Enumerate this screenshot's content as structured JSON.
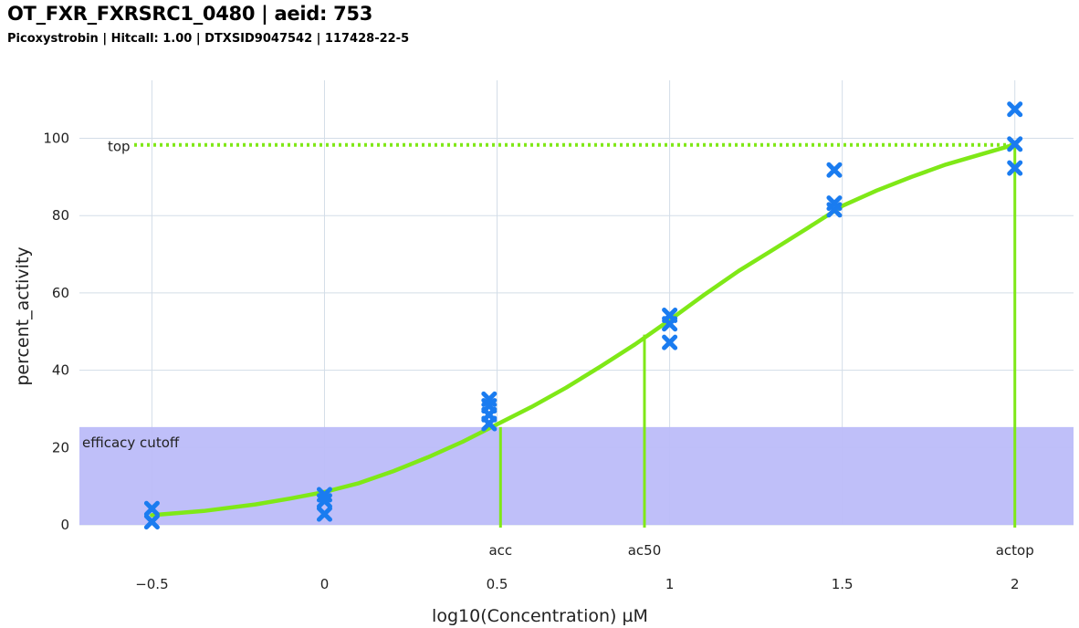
{
  "header": {
    "title": "OT_FXR_FXRSRC1_0480 | aeid: 753",
    "subtitle": "Picoxystrobin | Hitcall: 1.00 | DTXSID9047542 | 117428-22-5"
  },
  "chart_data": {
    "type": "scatter",
    "xlabel": "log10(Concentration) µM",
    "ylabel": "percent_activity",
    "xlim": [
      -0.71,
      2.17
    ],
    "ylim": [
      0,
      115
    ],
    "grid": true,
    "x_ticks": [
      -0.5,
      0,
      0.5,
      1,
      1.5,
      2
    ],
    "x_tick_labels": [
      "−0.5",
      "0",
      "0.5",
      "1",
      "1.5",
      "2"
    ],
    "y_ticks": [
      0,
      20,
      40,
      60,
      80,
      100
    ],
    "y_tick_labels": [
      "0",
      "20",
      "40",
      "60",
      "80",
      "100"
    ],
    "points": [
      {
        "x": -0.5,
        "y": 4.2
      },
      {
        "x": -0.5,
        "y": 0.8
      },
      {
        "x": 0,
        "y": 7.8
      },
      {
        "x": 0,
        "y": 6.2
      },
      {
        "x": 0,
        "y": 2.8
      },
      {
        "x": 0.477,
        "y": 32.5
      },
      {
        "x": 0.477,
        "y": 30.8
      },
      {
        "x": 0.477,
        "y": 28.5
      },
      {
        "x": 0.477,
        "y": 26.2
      },
      {
        "x": 1,
        "y": 54.2
      },
      {
        "x": 1,
        "y": 52.0
      },
      {
        "x": 1,
        "y": 47.2
      },
      {
        "x": 1.477,
        "y": 91.8
      },
      {
        "x": 1.477,
        "y": 83.2
      },
      {
        "x": 1.477,
        "y": 81.5
      },
      {
        "x": 2,
        "y": 107.5
      },
      {
        "x": 2,
        "y": 98.5
      },
      {
        "x": 2,
        "y": 92.3
      }
    ],
    "fit_curve": {
      "x": [
        -0.5,
        -0.35,
        -0.2,
        -0.1,
        0,
        0.1,
        0.2,
        0.3,
        0.4,
        0.5,
        0.6,
        0.7,
        0.8,
        0.9,
        1.0,
        1.1,
        1.2,
        1.3,
        1.4,
        1.5,
        1.6,
        1.7,
        1.8,
        1.9,
        2.0
      ],
      "y": [
        2.5,
        3.6,
        5.3,
        6.8,
        8.5,
        10.8,
        13.9,
        17.5,
        21.5,
        26.0,
        30.5,
        35.5,
        41.0,
        46.7,
        53.0,
        59.5,
        65.7,
        71.2,
        76.8,
        82.5,
        86.5,
        90.0,
        93.2,
        95.8,
        98.4
      ]
    },
    "efficacy_cutoff": {
      "value": 25.3,
      "label": "efficacy cutoff"
    },
    "top": {
      "value": 98.3,
      "label": "top"
    },
    "markers": [
      {
        "label": "acc",
        "x": 0.51,
        "y": 25.3
      },
      {
        "label": "ac50",
        "x": 0.927,
        "y": 49.2
      },
      {
        "label": "actop",
        "x": 2.0,
        "y": 98.3
      }
    ],
    "colors": {
      "curve": "#7fe817",
      "points": "#1a7cf0",
      "cutoff_band": "#bcbcf9",
      "grid": "#d3dde8"
    }
  }
}
